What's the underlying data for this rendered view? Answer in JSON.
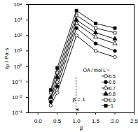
{
  "chart_data": {
    "type": "line",
    "x_label": "β",
    "y_label": "η₀ / Pa·s",
    "log": "y",
    "x": [
      0.33,
      0.5,
      1.0,
      1.5,
      2.0
    ],
    "xlim": [
      -0.25,
      2.5
    ],
    "xticks": [
      {
        "value": 0,
        "label": "0.0"
      },
      0.5,
      {
        "value": 1,
        "label": "1.0"
      },
      1.5,
      {
        "value": 2,
        "label": "2.0"
      },
      2.5
    ],
    "ylim": [
      0.001,
      10000
    ],
    "yticks": [
      {
        "value": 0.001,
        "label": "10⁻³"
      },
      {
        "value": 0.01,
        "label": "10⁻²"
      },
      {
        "value": 0.1,
        "label": "10⁻¹"
      },
      {
        "value": 1,
        "label": "10⁰"
      },
      {
        "value": 10,
        "label": "10¹"
      },
      {
        "value": 100,
        "label": "10²"
      },
      {
        "value": 1000,
        "label": "10³"
      },
      {
        "value": 10000,
        "label": "10⁴"
      }
    ],
    "legend_title": "OA / mol L⁻¹",
    "legend": "lower right",
    "series": [
      {
        "name": "0.5",
        "color": "#000000",
        "marker": "circle-open",
        "values": [
          0.003,
          0.02,
          100,
          10,
          4
        ]
      },
      {
        "name": "0.6",
        "color": "#000000",
        "marker": "circle",
        "values": [
          0.005,
          0.05,
          300,
          30,
          10
        ]
      },
      {
        "name": "0.7",
        "color": "#000000",
        "marker": "triangle-open",
        "values": [
          0.008,
          0.1,
          600,
          80,
          30
        ]
      },
      {
        "name": "0.8",
        "color": "#000000",
        "marker": "triangle",
        "values": [
          0.01,
          0.2,
          1000,
          150,
          60
        ]
      },
      {
        "name": "0.9",
        "color": "#000000",
        "marker": "square-open",
        "values": [
          0.02,
          0.4,
          2000,
          300,
          150
        ]
      },
      {
        "name": "1",
        "color": "#000000",
        "marker": "square",
        "values": [
          0.03,
          0.8,
          4000,
          600,
          300
        ]
      }
    ],
    "annotations": [
      {
        "text": "β = 1",
        "x": 1
      }
    ]
  }
}
